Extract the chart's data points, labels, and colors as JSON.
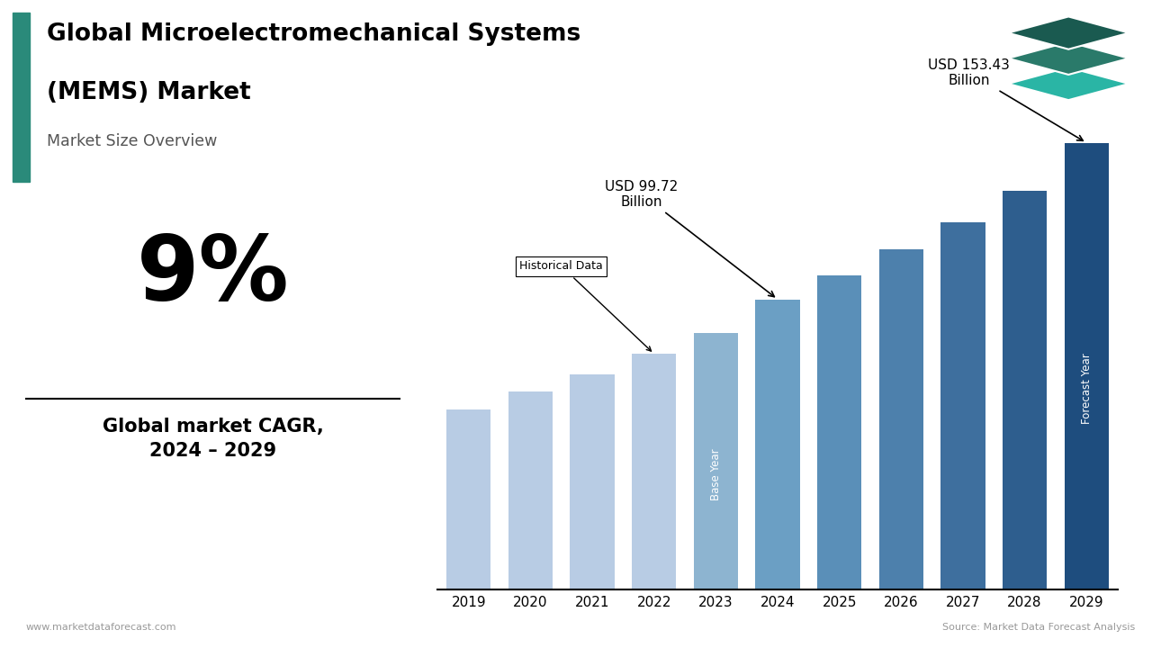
{
  "title_line1": "Global Microelectromechanical Systems",
  "title_line2": "(MEMS) Market",
  "subtitle": "Market Size Overview",
  "cagr_value": "9%",
  "cagr_label": "Global market CAGR,\n2024 – 2029",
  "years": [
    2019,
    2020,
    2021,
    2022,
    2023,
    2024,
    2025,
    2026,
    2027,
    2028,
    2029
  ],
  "values": [
    62,
    68,
    74,
    81,
    88,
    99.72,
    108,
    117,
    126,
    137,
    153.43
  ],
  "bar_colors": [
    "#b8cce4",
    "#b8cce4",
    "#b8cce4",
    "#b8cce4",
    "#8db4d0",
    "#6b9fc4",
    "#5a8fb8",
    "#4d80ac",
    "#3e6f9e",
    "#2e5e8e",
    "#1e4d7e"
  ],
  "annotation_2024_label": "USD 99.72\nBillion",
  "annotation_2029_label": "USD 153.43\nBillion",
  "historical_label": "Historical Data",
  "base_year_label": "Base Year",
  "forecast_year_label": "Forecast Year",
  "footer_left": "www.marketdataforecast.com",
  "footer_right": "Source: Market Data Forecast Analysis",
  "accent_color": "#2a8a7a",
  "bg_color": "#ffffff",
  "logo_colors": [
    "#1a5a50",
    "#2a7a6a",
    "#2ab5a5"
  ]
}
